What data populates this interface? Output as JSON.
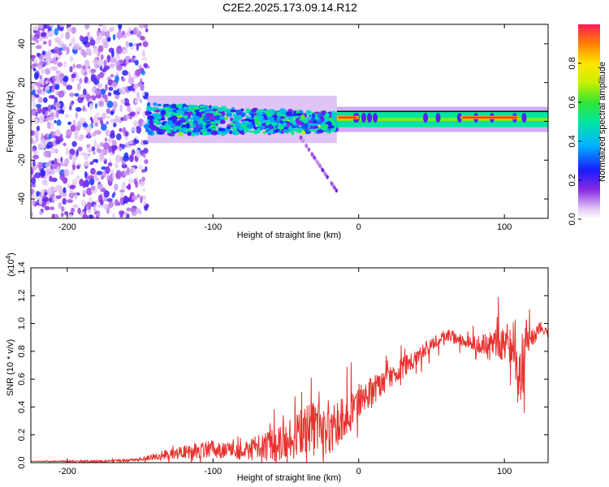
{
  "title": "C2E2.2025.173.09.14.R12",
  "colors": {
    "snr_line": "#e8312e",
    "frame": "#000000"
  },
  "chart_data": [
    {
      "type": "heatmap",
      "xlabel": "Height of straight line (km)",
      "ylabel": "Frequency (Hz)",
      "xlim": [
        -225,
        130
      ],
      "ylim": [
        -50,
        50
      ],
      "xticks": [
        -200,
        -100,
        0,
        100
      ],
      "yticks": [
        -40,
        -20,
        0,
        20,
        40
      ],
      "colorbar": {
        "label": "Normalized spectral amplitude",
        "range": [
          0,
          1
        ],
        "ticks": [
          "0.0",
          "0.2",
          "0.4",
          "0.6",
          "0.8"
        ],
        "tick_values": [
          0,
          0.2,
          0.4,
          0.6,
          0.8
        ],
        "colormap": "rainbow"
      },
      "features": [
        {
          "x_range": [
            -225,
            -145
          ],
          "freq_range": [
            -50,
            50
          ],
          "amplitude": 0.15,
          "kind": "broadband noise"
        },
        {
          "x_range": [
            -145,
            -15
          ],
          "freq_range": [
            -7,
            9
          ],
          "amplitude": 0.45,
          "kind": "scattered signal band"
        },
        {
          "x_range": [
            -15,
            130
          ],
          "freq_range": [
            -3,
            5
          ],
          "amplitude": 0.55,
          "kind": "narrow stable band near 0 Hz"
        },
        {
          "x_range": [
            -15,
            0
          ],
          "freq_range": [
            1,
            3
          ],
          "amplitude": 1.0,
          "kind": "peak"
        },
        {
          "x_range": [
            70,
            110
          ],
          "freq_range": [
            1,
            3
          ],
          "amplitude": 1.0,
          "kind": "peak"
        }
      ]
    },
    {
      "type": "line",
      "xlabel": "Height of straight line (km)",
      "ylabel": "SNR (10 * v/v)",
      "scale_note": "(x10",
      "scale_exp": "4",
      "scale_close": ")",
      "xlim": [
        -225,
        130
      ],
      "ylim": [
        0,
        1.4
      ],
      "xticks": [
        -200,
        -100,
        0,
        100
      ],
      "yticks": [
        "0.0",
        "0.2",
        "0.4",
        "0.6",
        "0.8",
        "1.0",
        "1.2",
        "1.4"
      ],
      "ytick_values": [
        0,
        0.2,
        0.4,
        0.6,
        0.8,
        1.0,
        1.2,
        1.4
      ],
      "series": [
        {
          "x": [
            -225,
            -200,
            -175,
            -150,
            -140,
            -130,
            -120,
            -110,
            -100,
            -90,
            -80,
            -70,
            -60,
            -50,
            -40,
            -30,
            -20,
            -10,
            0,
            10,
            20,
            30,
            40,
            50,
            60,
            70,
            80,
            90,
            95,
            100,
            105,
            110,
            112,
            115,
            120,
            125,
            130
          ],
          "y": [
            0.01,
            0.01,
            0.01,
            0.02,
            0.05,
            0.06,
            0.08,
            0.09,
            0.1,
            0.09,
            0.1,
            0.11,
            0.12,
            0.15,
            0.22,
            0.24,
            0.26,
            0.3,
            0.45,
            0.52,
            0.6,
            0.68,
            0.76,
            0.85,
            0.92,
            0.88,
            0.86,
            0.83,
            0.9,
            0.85,
            0.8,
            0.55,
            0.7,
            0.88,
            0.9,
            0.98,
            0.92
          ],
          "noise": [
            0,
            0.005,
            0.008,
            0.01,
            0.03,
            0.04,
            0.05,
            0.06,
            0.06,
            0.07,
            0.08,
            0.1,
            0.12,
            0.15,
            0.18,
            0.2,
            0.2,
            0.16,
            0.12,
            0.1,
            0.08,
            0.08,
            0.06,
            0.05,
            0.05,
            0.05,
            0.05,
            0.1,
            0.15,
            0.12,
            0.1,
            0.2,
            0.3,
            0.15,
            0.06,
            0.04,
            0.03
          ]
        }
      ]
    }
  ]
}
